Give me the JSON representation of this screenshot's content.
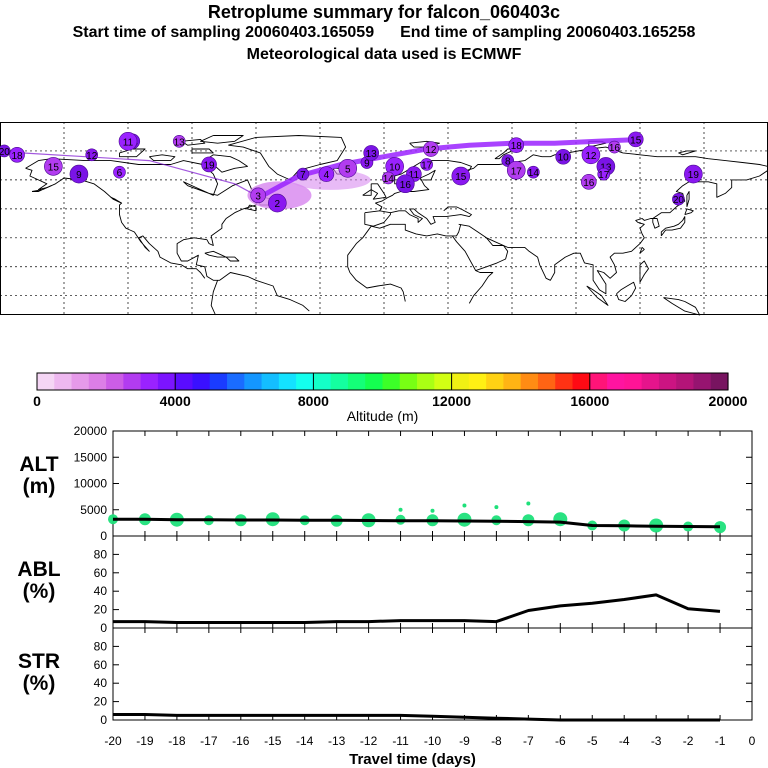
{
  "header": {
    "title": "Retroplume summary for falcon_060403c",
    "start_label": "Start time of sampling 20060403.165059",
    "end_label": "End time of sampling 20060403.165258",
    "met_label": "Meteorological data used is ECMWF"
  },
  "map": {
    "ocean_color": "#ffffff",
    "plume_color": "#9a22ff",
    "plume_light_color": "#d98cf0",
    "clusters": [
      {
        "label": "20",
        "lon": -178,
        "lat": 75
      },
      {
        "label": "18",
        "lon": -172,
        "lat": 73
      },
      {
        "label": "15",
        "lon": -155,
        "lat": 67
      },
      {
        "label": "12",
        "lon": -137,
        "lat": 73
      },
      {
        "label": "14",
        "lon": -118,
        "lat": 80
      },
      {
        "label": "11",
        "lon": -120,
        "lat": 80
      },
      {
        "label": "13",
        "lon": -96,
        "lat": 80
      },
      {
        "label": "19",
        "lon": -82,
        "lat": 68
      },
      {
        "label": "9",
        "lon": -143,
        "lat": 63
      },
      {
        "label": "6",
        "lon": -124,
        "lat": 64
      },
      {
        "label": "3",
        "lon": -59,
        "lat": 52
      },
      {
        "label": "2",
        "lon": -50,
        "lat": 48
      },
      {
        "label": "7",
        "lon": -38,
        "lat": 63
      },
      {
        "label": "4",
        "lon": -27,
        "lat": 63
      },
      {
        "label": "5",
        "lon": -17,
        "lat": 66
      },
      {
        "label": "9",
        "lon": -8,
        "lat": 69
      },
      {
        "label": "13",
        "lon": -6,
        "lat": 74
      },
      {
        "label": "10",
        "lon": 5,
        "lat": 67
      },
      {
        "label": "14",
        "lon": 2,
        "lat": 61
      },
      {
        "label": "11",
        "lon": 14,
        "lat": 63
      },
      {
        "label": "16",
        "lon": 10,
        "lat": 58
      },
      {
        "label": "17",
        "lon": 20,
        "lat": 68
      },
      {
        "label": "12",
        "lon": 22,
        "lat": 76
      },
      {
        "label": "15",
        "lon": 36,
        "lat": 62
      },
      {
        "label": "8",
        "lon": 58,
        "lat": 70
      },
      {
        "label": "18",
        "lon": 62,
        "lat": 78
      },
      {
        "label": "17",
        "lon": 62,
        "lat": 65
      },
      {
        "label": "14",
        "lon": 70,
        "lat": 64
      },
      {
        "label": "10",
        "lon": 84,
        "lat": 72
      },
      {
        "label": "12",
        "lon": 97,
        "lat": 73
      },
      {
        "label": "16",
        "lon": 108,
        "lat": 77
      },
      {
        "label": "15",
        "lon": 118,
        "lat": 81
      },
      {
        "label": "13",
        "lon": 104,
        "lat": 67
      },
      {
        "label": "17",
        "lon": 103,
        "lat": 63
      },
      {
        "label": "16",
        "lon": 96,
        "lat": 59
      },
      {
        "label": "19",
        "lon": 145,
        "lat": 63
      },
      {
        "label": "20",
        "lon": 138,
        "lat": 50
      }
    ]
  },
  "colorbar": {
    "axis_label": "Altitude (m)",
    "tick_labels": [
      "0",
      "4000",
      "8000",
      "12000",
      "16000",
      "20000"
    ],
    "colors": [
      "#f5d6f5",
      "#eeb8f0",
      "#e69aea",
      "#dc7ee6",
      "#cc5de6",
      "#b23cf0",
      "#9a22ff",
      "#7c14ff",
      "#5a0cff",
      "#3a10ff",
      "#1a3cff",
      "#1a6cff",
      "#1496ff",
      "#14beff",
      "#14e2ff",
      "#14ffee",
      "#14ffc8",
      "#14ffa0",
      "#14ff78",
      "#14ff50",
      "#3cff28",
      "#78ff14",
      "#aaff14",
      "#d2ff14",
      "#f0f014",
      "#fff014",
      "#ffd214",
      "#ffb414",
      "#ff8c14",
      "#ff6414",
      "#ff3214",
      "#ff0a14",
      "#ff1478",
      "#ff14a0",
      "#ff1496",
      "#e6148c",
      "#cc1482",
      "#b41478",
      "#961470",
      "#781460"
    ]
  },
  "chart_data": [
    {
      "type": "line",
      "panel": "ALT",
      "ylabel": "ALT (m)",
      "title": "",
      "xlabel": "Travel time (days)",
      "xlim": [
        -20,
        0
      ],
      "ylim": [
        0,
        20000
      ],
      "y_ticks": [
        "0",
        "5000",
        "10000",
        "15000",
        "20000"
      ],
      "x": [
        -20,
        -19,
        -18,
        -17,
        -16,
        -15,
        -14,
        -13,
        -12,
        -11,
        -10,
        -9,
        -8,
        -7,
        -6,
        -5,
        -4,
        -3,
        -2,
        -1
      ],
      "series": [
        {
          "name": "median altitude",
          "color": "#000000",
          "values": [
            3200,
            3200,
            3100,
            3100,
            3050,
            3050,
            3000,
            3000,
            2950,
            2900,
            2900,
            2850,
            2800,
            2750,
            2650,
            2000,
            1950,
            1850,
            1800,
            1750
          ]
        },
        {
          "name": "cluster altitude",
          "color": "#1ee07a",
          "values": [
            3200,
            3200,
            3100,
            3000,
            3000,
            3200,
            3000,
            2900,
            3000,
            3100,
            3000,
            3100,
            3000,
            3000,
            3200,
            2000,
            2000,
            2000,
            1800,
            1700
          ]
        },
        {
          "name": "high clusters",
          "color": "#1ee07a",
          "values": [
            null,
            null,
            null,
            null,
            null,
            null,
            null,
            null,
            null,
            5000,
            4800,
            5800,
            5500,
            6200,
            null,
            null,
            null,
            null,
            null,
            null
          ]
        }
      ]
    },
    {
      "type": "line",
      "panel": "ABL",
      "ylabel": "ABL (%)",
      "title": "",
      "xlim": [
        -20,
        0
      ],
      "ylim": [
        0,
        100
      ],
      "y_ticks": [
        "0",
        "20",
        "40",
        "60",
        "80"
      ],
      "x": [
        -20,
        -19,
        -18,
        -17,
        -16,
        -15,
        -14,
        -13,
        -12,
        -11,
        -10,
        -9,
        -8,
        -7,
        -6,
        -5,
        -4,
        -3,
        -2,
        -1
      ],
      "series": [
        {
          "name": "ABL fraction",
          "color": "#000000",
          "values": [
            7,
            7,
            6,
            6,
            6,
            6,
            6,
            7,
            7,
            8,
            8,
            8,
            7,
            19,
            24,
            27,
            31,
            36,
            21,
            18
          ]
        }
      ]
    },
    {
      "type": "line",
      "panel": "STR",
      "ylabel": "STR (%)",
      "title": "",
      "xlim": [
        -20,
        0
      ],
      "ylim": [
        0,
        100
      ],
      "y_ticks": [
        "0",
        "20",
        "40",
        "60",
        "80"
      ],
      "x": [
        -20,
        -19,
        -18,
        -17,
        -16,
        -15,
        -14,
        -13,
        -12,
        -11,
        -10,
        -9,
        -8,
        -7,
        -6,
        -5,
        -4,
        -3,
        -2,
        -1
      ],
      "series": [
        {
          "name": "STR fraction",
          "color": "#000000",
          "values": [
            6,
            6,
            5,
            5,
            5,
            5,
            5,
            5,
            5,
            5,
            4,
            3,
            2,
            1,
            0,
            0,
            0,
            0,
            0,
            0
          ]
        }
      ]
    }
  ],
  "x_tick_labels": [
    "-20",
    "-19",
    "-18",
    "-17",
    "-16",
    "-15",
    "-14",
    "-13",
    "-12",
    "-11",
    "-10",
    "-9",
    "-8",
    "-7",
    "-6",
    "-5",
    "-4",
    "-3",
    "-2",
    "-1",
    "0"
  ],
  "x_axis_label": "Travel time (days)"
}
